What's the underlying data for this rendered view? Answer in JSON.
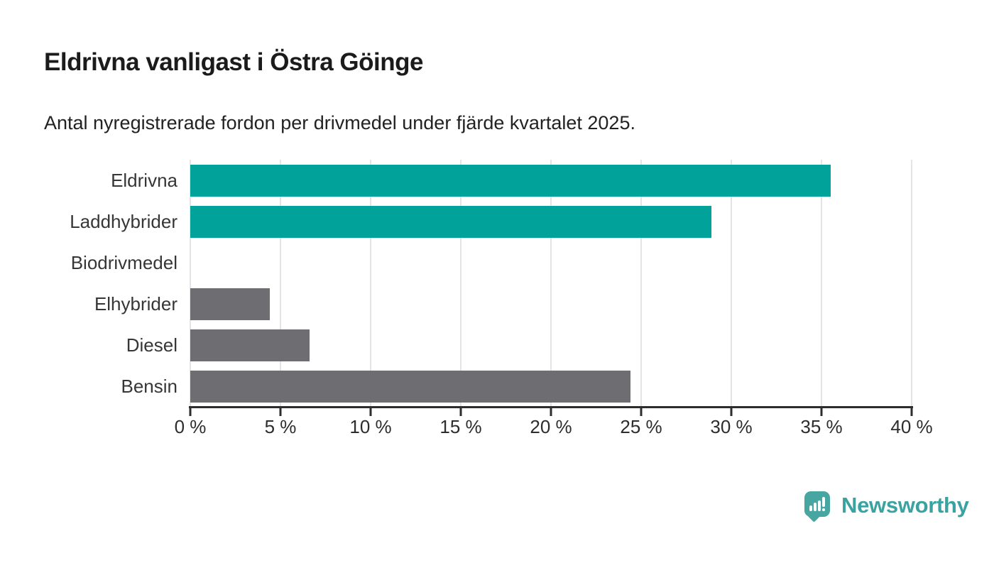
{
  "header": {
    "title": "Eldrivna vanligast i Östra Göinge",
    "subtitle": "Antal nyregistrerade fordon per drivmedel under fjärde kvartalet 2025."
  },
  "chart_data": {
    "type": "bar",
    "orientation": "horizontal",
    "title": "Eldrivna vanligast i Östra Göinge",
    "subtitle": "Antal nyregistrerade fordon per drivmedel under fjärde kvartalet 2025.",
    "categories": [
      "Eldrivna",
      "Laddhybrider",
      "Biodrivmedel",
      "Elhybrider",
      "Diesel",
      "Bensin"
    ],
    "values": [
      35.5,
      28.9,
      0,
      4.4,
      6.6,
      24.4
    ],
    "unit": "%",
    "bar_colors": [
      "#00a29a",
      "#00a29a",
      "#6e6e72",
      "#6e6e72",
      "#6e6e72",
      "#6e6e72"
    ],
    "xlabel": "",
    "ylabel": "",
    "xlim": [
      0,
      40
    ],
    "x_ticks": [
      {
        "value": 0,
        "label": "0 %"
      },
      {
        "value": 5,
        "label": "5 %"
      },
      {
        "value": 10,
        "label": "10 %"
      },
      {
        "value": 15,
        "label": "15 %"
      },
      {
        "value": 20,
        "label": "20 %"
      },
      {
        "value": 25,
        "label": "25 %"
      },
      {
        "value": 30,
        "label": "30 %"
      },
      {
        "value": 35,
        "label": "35 %"
      },
      {
        "value": 40,
        "label": "40 %"
      }
    ],
    "grid": "vertical",
    "legend": "none"
  },
  "colors": {
    "accent_teal": "#00a29a",
    "neutral_gray": "#6e6e72",
    "gridline": "#e4e4e4",
    "axis": "#2d2d2d",
    "title_text": "#1b1b1b",
    "label_text": "#363636"
  },
  "branding": {
    "logo_text": "Newsworthy",
    "logo_text_color": "#3aa2a0",
    "logo_icon_color": "#47a6a2"
  }
}
